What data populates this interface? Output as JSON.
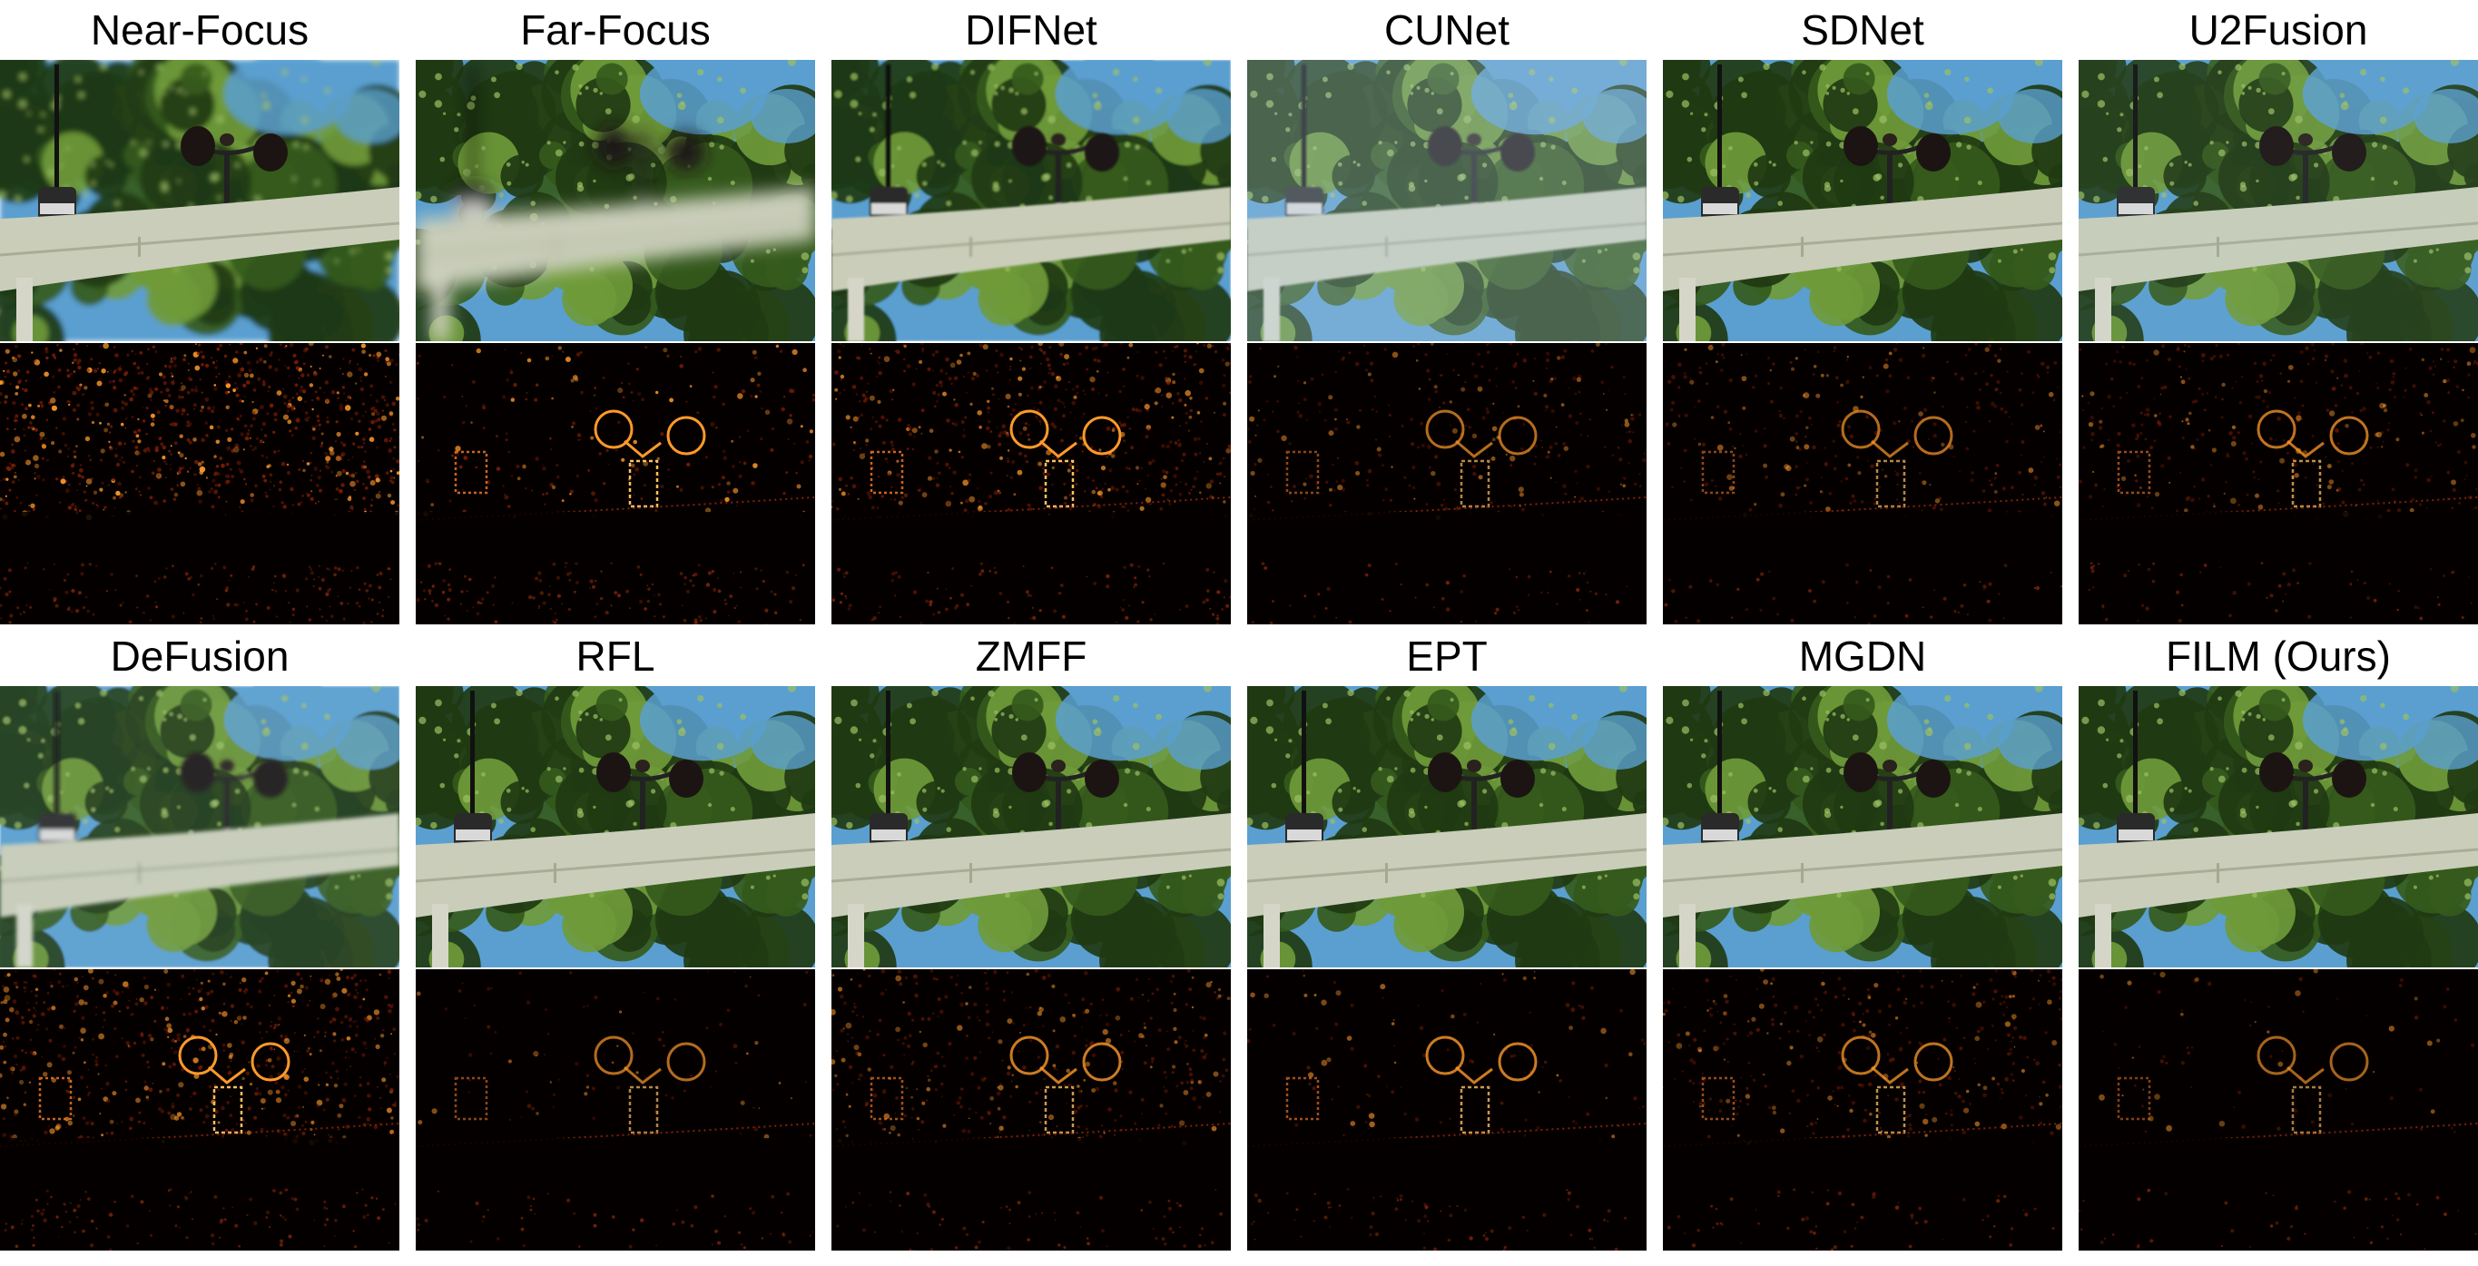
{
  "panels": [
    {
      "title": "Near-Focus",
      "blur": 0,
      "haze": 0,
      "bg_blur": 3,
      "err": 1.0,
      "err_mode": "background"
    },
    {
      "title": "Far-Focus",
      "blur": 9,
      "haze": 0,
      "bg_blur": 0,
      "err": 0.9,
      "err_mode": "object"
    },
    {
      "title": "DIFNet",
      "blur": 1,
      "haze": 0,
      "bg_blur": 1,
      "err": 0.65,
      "err_mode": "both"
    },
    {
      "title": "CUNet",
      "blur": 1,
      "haze": 0.28,
      "bg_blur": 0,
      "err": 0.35,
      "err_mode": "both"
    },
    {
      "title": "SDNet",
      "blur": 0,
      "haze": 0,
      "bg_blur": 0,
      "err": 0.35,
      "err_mode": "both"
    },
    {
      "title": "U2Fusion",
      "blur": 0,
      "haze": 0.05,
      "bg_blur": 0,
      "err": 0.4,
      "err_mode": "both"
    },
    {
      "title": "DeFusion",
      "blur": 2,
      "haze": 0.08,
      "bg_blur": 1,
      "err": 0.7,
      "err_mode": "both"
    },
    {
      "title": "RFL",
      "blur": 0,
      "haze": 0,
      "bg_blur": 0,
      "err": 0.35,
      "err_mode": "object"
    },
    {
      "title": "ZMFF",
      "blur": 0,
      "haze": 0,
      "bg_blur": 0,
      "err": 0.45,
      "err_mode": "both"
    },
    {
      "title": "EPT",
      "blur": 0,
      "haze": 0,
      "bg_blur": 0,
      "err": 0.45,
      "err_mode": "object"
    },
    {
      "title": "MGDN",
      "blur": 0,
      "haze": 0,
      "bg_blur": 0,
      "err": 0.4,
      "err_mode": "both"
    },
    {
      "title": "FILM (Ours)",
      "blur": 0,
      "haze": 0,
      "bg_blur": 0,
      "err": 0.3,
      "err_mode": "object"
    }
  ],
  "colors": {
    "sky": "#5a9fd0",
    "foliage_dark": "#1f3a12",
    "foliage_light": "#6f9a3a",
    "beam": "#c9cdb9",
    "error_hot": "#ff9a2a",
    "error_dark": "#050000"
  }
}
